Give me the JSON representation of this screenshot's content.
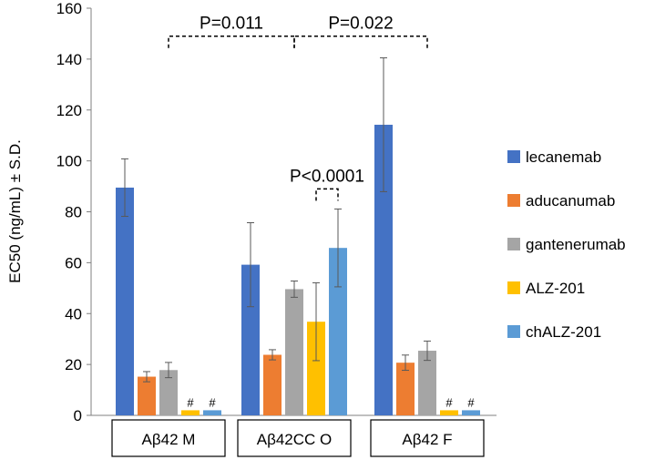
{
  "chart_data": {
    "type": "bar",
    "title": "",
    "xlabel": "",
    "ylabel": "EC50 (ng/mL) ± S.D.",
    "ylim": [
      0,
      160
    ],
    "yticks": [
      0,
      20,
      40,
      60,
      80,
      100,
      120,
      140,
      160
    ],
    "categories": [
      "Aβ42 M",
      "Aβ42CC O",
      "Aβ42 F"
    ],
    "series": [
      {
        "name": "lecanemab",
        "color": "#4472C4",
        "values": [
          89.5,
          59.2,
          114.2
        ],
        "errors": [
          11.3,
          16.5,
          26.3
        ],
        "marks": [
          "",
          "",
          ""
        ]
      },
      {
        "name": "aducanumab",
        "color": "#ED7D31",
        "values": [
          15.2,
          23.8,
          20.7
        ],
        "errors": [
          2.0,
          2.0,
          3.0
        ],
        "marks": [
          "",
          "",
          ""
        ]
      },
      {
        "name": "gantenerumab",
        "color": "#A5A5A5",
        "values": [
          17.8,
          49.6,
          25.4
        ],
        "errors": [
          3.0,
          3.2,
          3.8
        ],
        "marks": [
          "",
          "",
          ""
        ]
      },
      {
        "name": "ALZ-201",
        "color": "#FFC000",
        "values": [
          2,
          36.8,
          2
        ],
        "errors": [
          null,
          15.3,
          null
        ],
        "marks": [
          "#",
          "",
          "#"
        ]
      },
      {
        "name": "chALZ-201",
        "color": "#5B9BD5",
        "values": [
          2,
          65.8,
          2
        ],
        "errors": [
          null,
          15.3,
          null
        ],
        "marks": [
          "#",
          "",
          "#"
        ]
      }
    ],
    "annotations": [
      {
        "text": "P=0.011",
        "value": 149,
        "from": {
          "category": 0,
          "series": 2
        },
        "to": {
          "category": 1,
          "series": 2
        }
      },
      {
        "text": "P=0.022",
        "value": 149,
        "from": {
          "category": 1,
          "series": 2
        },
        "to": {
          "category": 2,
          "series": 2
        }
      },
      {
        "text": "P<0.0001",
        "value": 89,
        "from": {
          "category": 1,
          "series": 3
        },
        "to": {
          "category": 1,
          "series": 4
        }
      }
    ],
    "legend_position": "right"
  }
}
